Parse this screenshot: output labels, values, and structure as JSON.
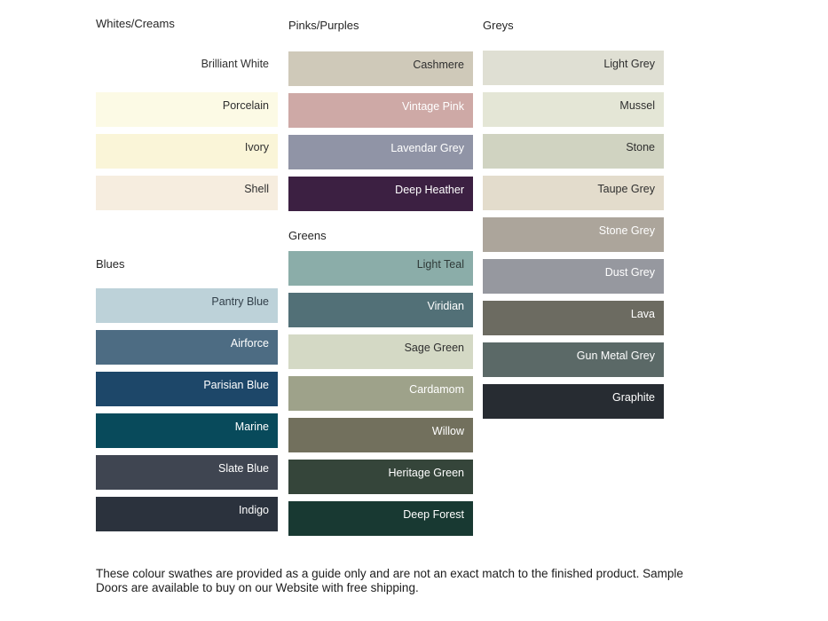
{
  "page": {
    "background": "#ffffff",
    "footer_lines": [
      "These colour swathes are provided as a guide only and are not an exact match to the finished product.  Sample",
      "Doors are available to buy on our Website with free shipping."
    ]
  },
  "palette_columns": [
    {
      "groups": [
        {
          "header": "Whites/Creams",
          "swatches": [
            {
              "label": "Brilliant White",
              "color": "#FFFFFF",
              "label_color": "#2F2F2F"
            },
            {
              "label": "Porcelain",
              "color": "#FCFAE5",
              "label_color": "#2F2F2F"
            },
            {
              "label": "Ivory",
              "color": "#FAF5D8",
              "label_color": "#2F2F2F"
            },
            {
              "label": "Shell",
              "color": "#F6EDDF",
              "label_color": "#2F2F2F"
            }
          ]
        },
        {
          "header": "Blues",
          "swatches": [
            {
              "label": "Pantry Blue",
              "color": "#BDD2D9",
              "label_color": "#32404A"
            },
            {
              "label": "Airforce",
              "color": "#4D6C83",
              "label_color": "#FFFFFF"
            },
            {
              "label": "Parisian Blue",
              "color": "#1D4769",
              "label_color": "#FFFFFF"
            },
            {
              "label": "Marine",
              "color": "#084A5B",
              "label_color": "#FFFFFF"
            },
            {
              "label": "Slate Blue",
              "color": "#3F4551",
              "label_color": "#FFFFFF"
            },
            {
              "label": "Indigo",
              "color": "#2B323D",
              "label_color": "#FFFFFF"
            }
          ]
        }
      ]
    },
    {
      "groups": [
        {
          "header": "Pinks/Purples",
          "swatches": [
            {
              "label": "Cashmere",
              "color": "#CFC9B9",
              "label_color": "#2F2F2F"
            },
            {
              "label": "Vintage Pink",
              "color": "#CEA9A6",
              "label_color": "#FFFFFF"
            },
            {
              "label": "Lavendar Grey",
              "color": "#9094A6",
              "label_color": "#FFFFFF"
            },
            {
              "label": "Deep Heather",
              "color": "#3C2042",
              "label_color": "#FFFFFF"
            }
          ]
        },
        {
          "header": "Greens",
          "swatches": [
            {
              "label": "Light Teal",
              "color": "#8BADA9",
              "label_color": "#2F3A38"
            },
            {
              "label": "Viridian",
              "color": "#527077",
              "label_color": "#FFFFFF"
            },
            {
              "label": "Sage Green",
              "color": "#D4D9C5",
              "label_color": "#2F2F2F"
            },
            {
              "label": "Cardamom",
              "color": "#9EA28A",
              "label_color": "#FFFFFF"
            },
            {
              "label": "Willow",
              "color": "#72705D",
              "label_color": "#FFFFFF"
            },
            {
              "label": "Heritage Green",
              "color": "#35453A",
              "label_color": "#FFFFFF"
            },
            {
              "label": "Deep Forest",
              "color": "#183932",
              "label_color": "#FFFFFF"
            }
          ]
        }
      ]
    },
    {
      "groups": [
        {
          "header": "Greys",
          "swatches": [
            {
              "label": "Light Grey",
              "color": "#DFDFD3",
              "label_color": "#2F2F2F"
            },
            {
              "label": "Mussel",
              "color": "#E4E6D6",
              "label_color": "#2F2F2F"
            },
            {
              "label": "Stone",
              "color": "#D0D3C1",
              "label_color": "#2F2F2F"
            },
            {
              "label": "Taupe Grey",
              "color": "#E3DCCC",
              "label_color": "#2F2F2F"
            },
            {
              "label": "Stone Grey",
              "color": "#ACA59B",
              "label_color": "#FFFFFF"
            },
            {
              "label": "Dust Grey",
              "color": "#96989F",
              "label_color": "#FFFFFF"
            },
            {
              "label": "Lava",
              "color": "#6C6B61",
              "label_color": "#FFFFFF"
            },
            {
              "label": "Gun Metal Grey",
              "color": "#5B6967",
              "label_color": "#FFFFFF"
            },
            {
              "label": "Graphite",
              "color": "#272C32",
              "label_color": "#FFFFFF"
            }
          ]
        }
      ]
    }
  ]
}
